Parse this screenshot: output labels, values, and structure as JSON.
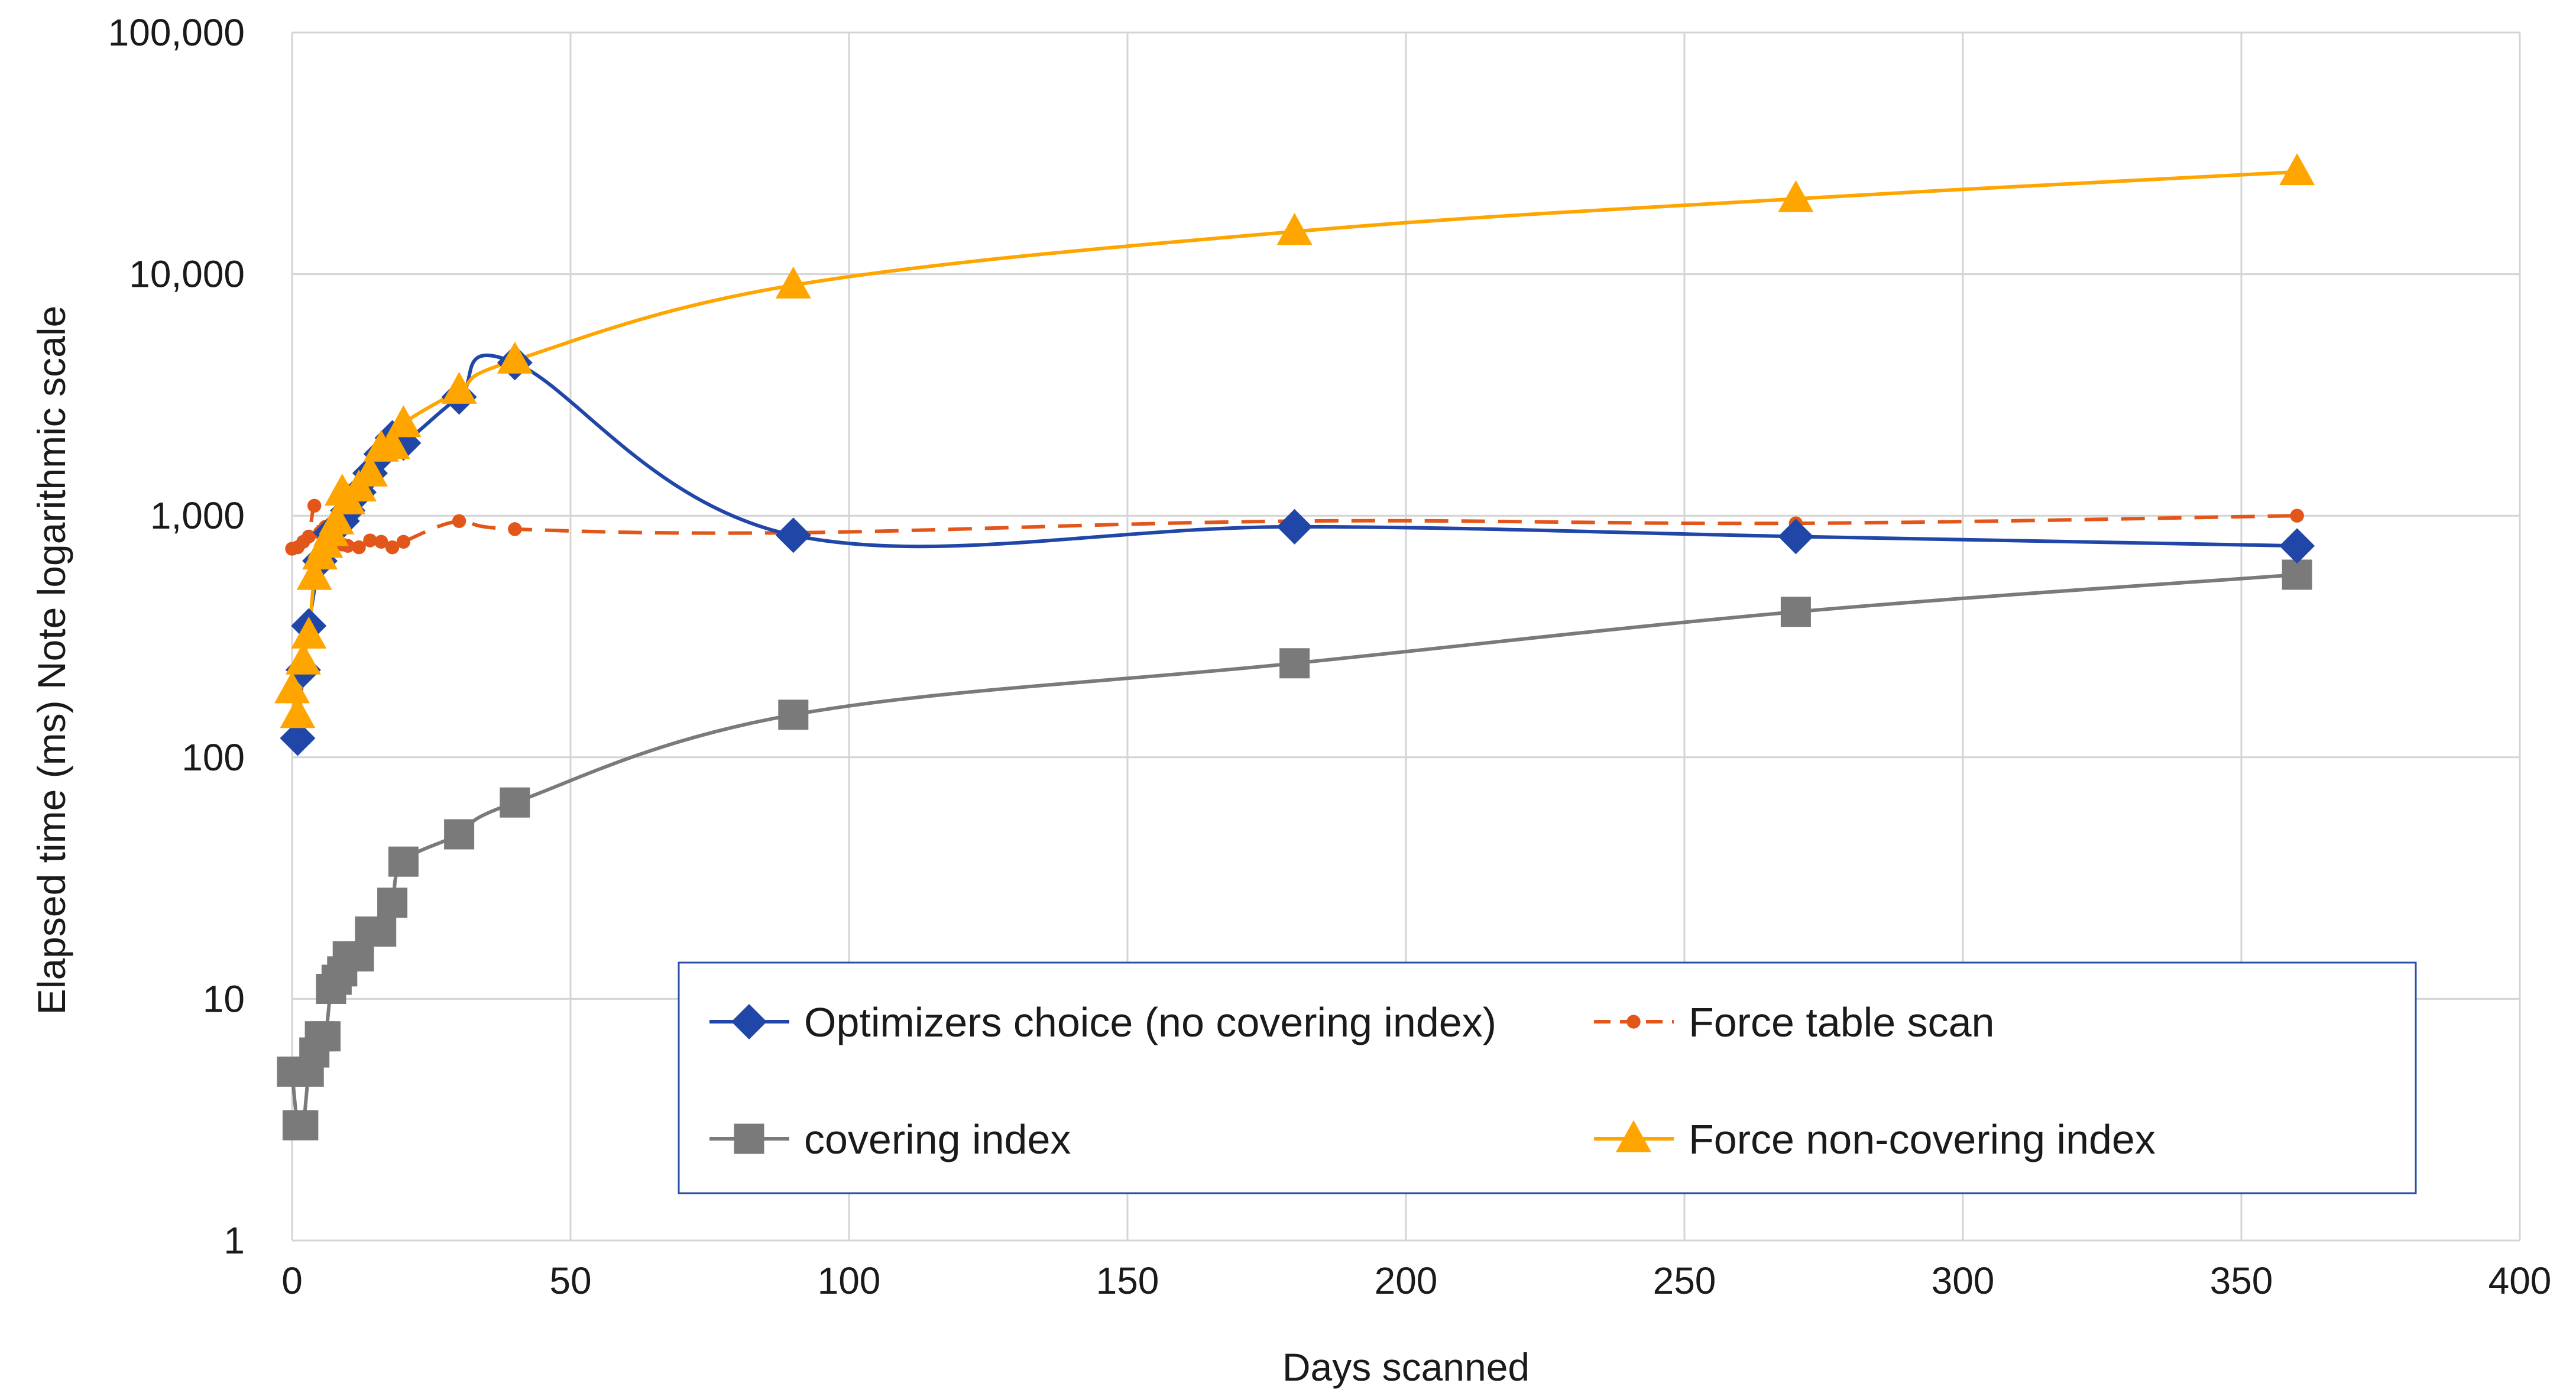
{
  "chart_data": {
    "type": "line",
    "title": "",
    "xlabel": "Days scanned",
    "ylabel": "Elapsed time (ms) Note logarithmic scale",
    "xlim": [
      0,
      400
    ],
    "ylim": [
      1,
      100000
    ],
    "yscale": "log",
    "grid": true,
    "legend_position": "lower-right",
    "x_ticks": [
      "0",
      "50",
      "100",
      "150",
      "200",
      "250",
      "300",
      "350",
      "400"
    ],
    "y_ticks": [
      "1",
      "10",
      "100",
      "1,000",
      "10,000",
      "100,000"
    ],
    "series": [
      {
        "name": "Optimizers choice (no covering index)",
        "color": "#2046a8",
        "marker": "diamond",
        "dash": "solid",
        "x": [
          1,
          2,
          3,
          5,
          7,
          9,
          10,
          12,
          14,
          16,
          18,
          20,
          30,
          40,
          90,
          180,
          270,
          360
        ],
        "y": [
          120,
          230,
          350,
          650,
          850,
          950,
          1050,
          1250,
          1500,
          1800,
          2100,
          2000,
          3100,
          4300,
          830,
          900,
          820,
          750
        ]
      },
      {
        "name": "Force table scan",
        "color": "#e2561a",
        "marker": "circle",
        "dash": "dashed",
        "x": [
          0,
          1,
          2,
          3,
          4,
          5,
          6,
          7,
          8,
          9,
          10,
          12,
          14,
          16,
          18,
          20,
          30,
          40,
          90,
          180,
          270,
          360
        ],
        "y": [
          730,
          740,
          780,
          820,
          1100,
          850,
          900,
          870,
          820,
          760,
          750,
          740,
          790,
          780,
          740,
          780,
          950,
          880,
          850,
          950,
          930,
          1000
        ]
      },
      {
        "name": "covering index",
        "color": "#7a7a7a",
        "marker": "square",
        "dash": "solid",
        "x": [
          0,
          1,
          2,
          3,
          4,
          5,
          6,
          7,
          8,
          9,
          10,
          12,
          14,
          16,
          18,
          20,
          30,
          40,
          90,
          180,
          270,
          360
        ],
        "y": [
          5,
          3,
          3,
          5,
          6,
          7,
          7,
          11,
          12,
          13,
          15,
          15,
          19,
          19,
          25,
          37,
          48,
          65,
          150,
          245,
          400,
          570
        ]
      },
      {
        "name": "Force non-covering index",
        "color": "#ffa500",
        "marker": "triangle",
        "dash": "solid",
        "x": [
          0,
          1,
          2,
          3,
          4,
          5,
          6,
          7,
          8,
          9,
          10,
          12,
          14,
          16,
          18,
          20,
          30,
          40,
          90,
          180,
          270,
          360
        ],
        "y": [
          190,
          150,
          250,
          320,
          560,
          680,
          760,
          850,
          950,
          1250,
          1150,
          1300,
          1500,
          1900,
          1950,
          2400,
          3300,
          4400,
          9000,
          15000,
          20500,
          26500
        ]
      }
    ]
  }
}
